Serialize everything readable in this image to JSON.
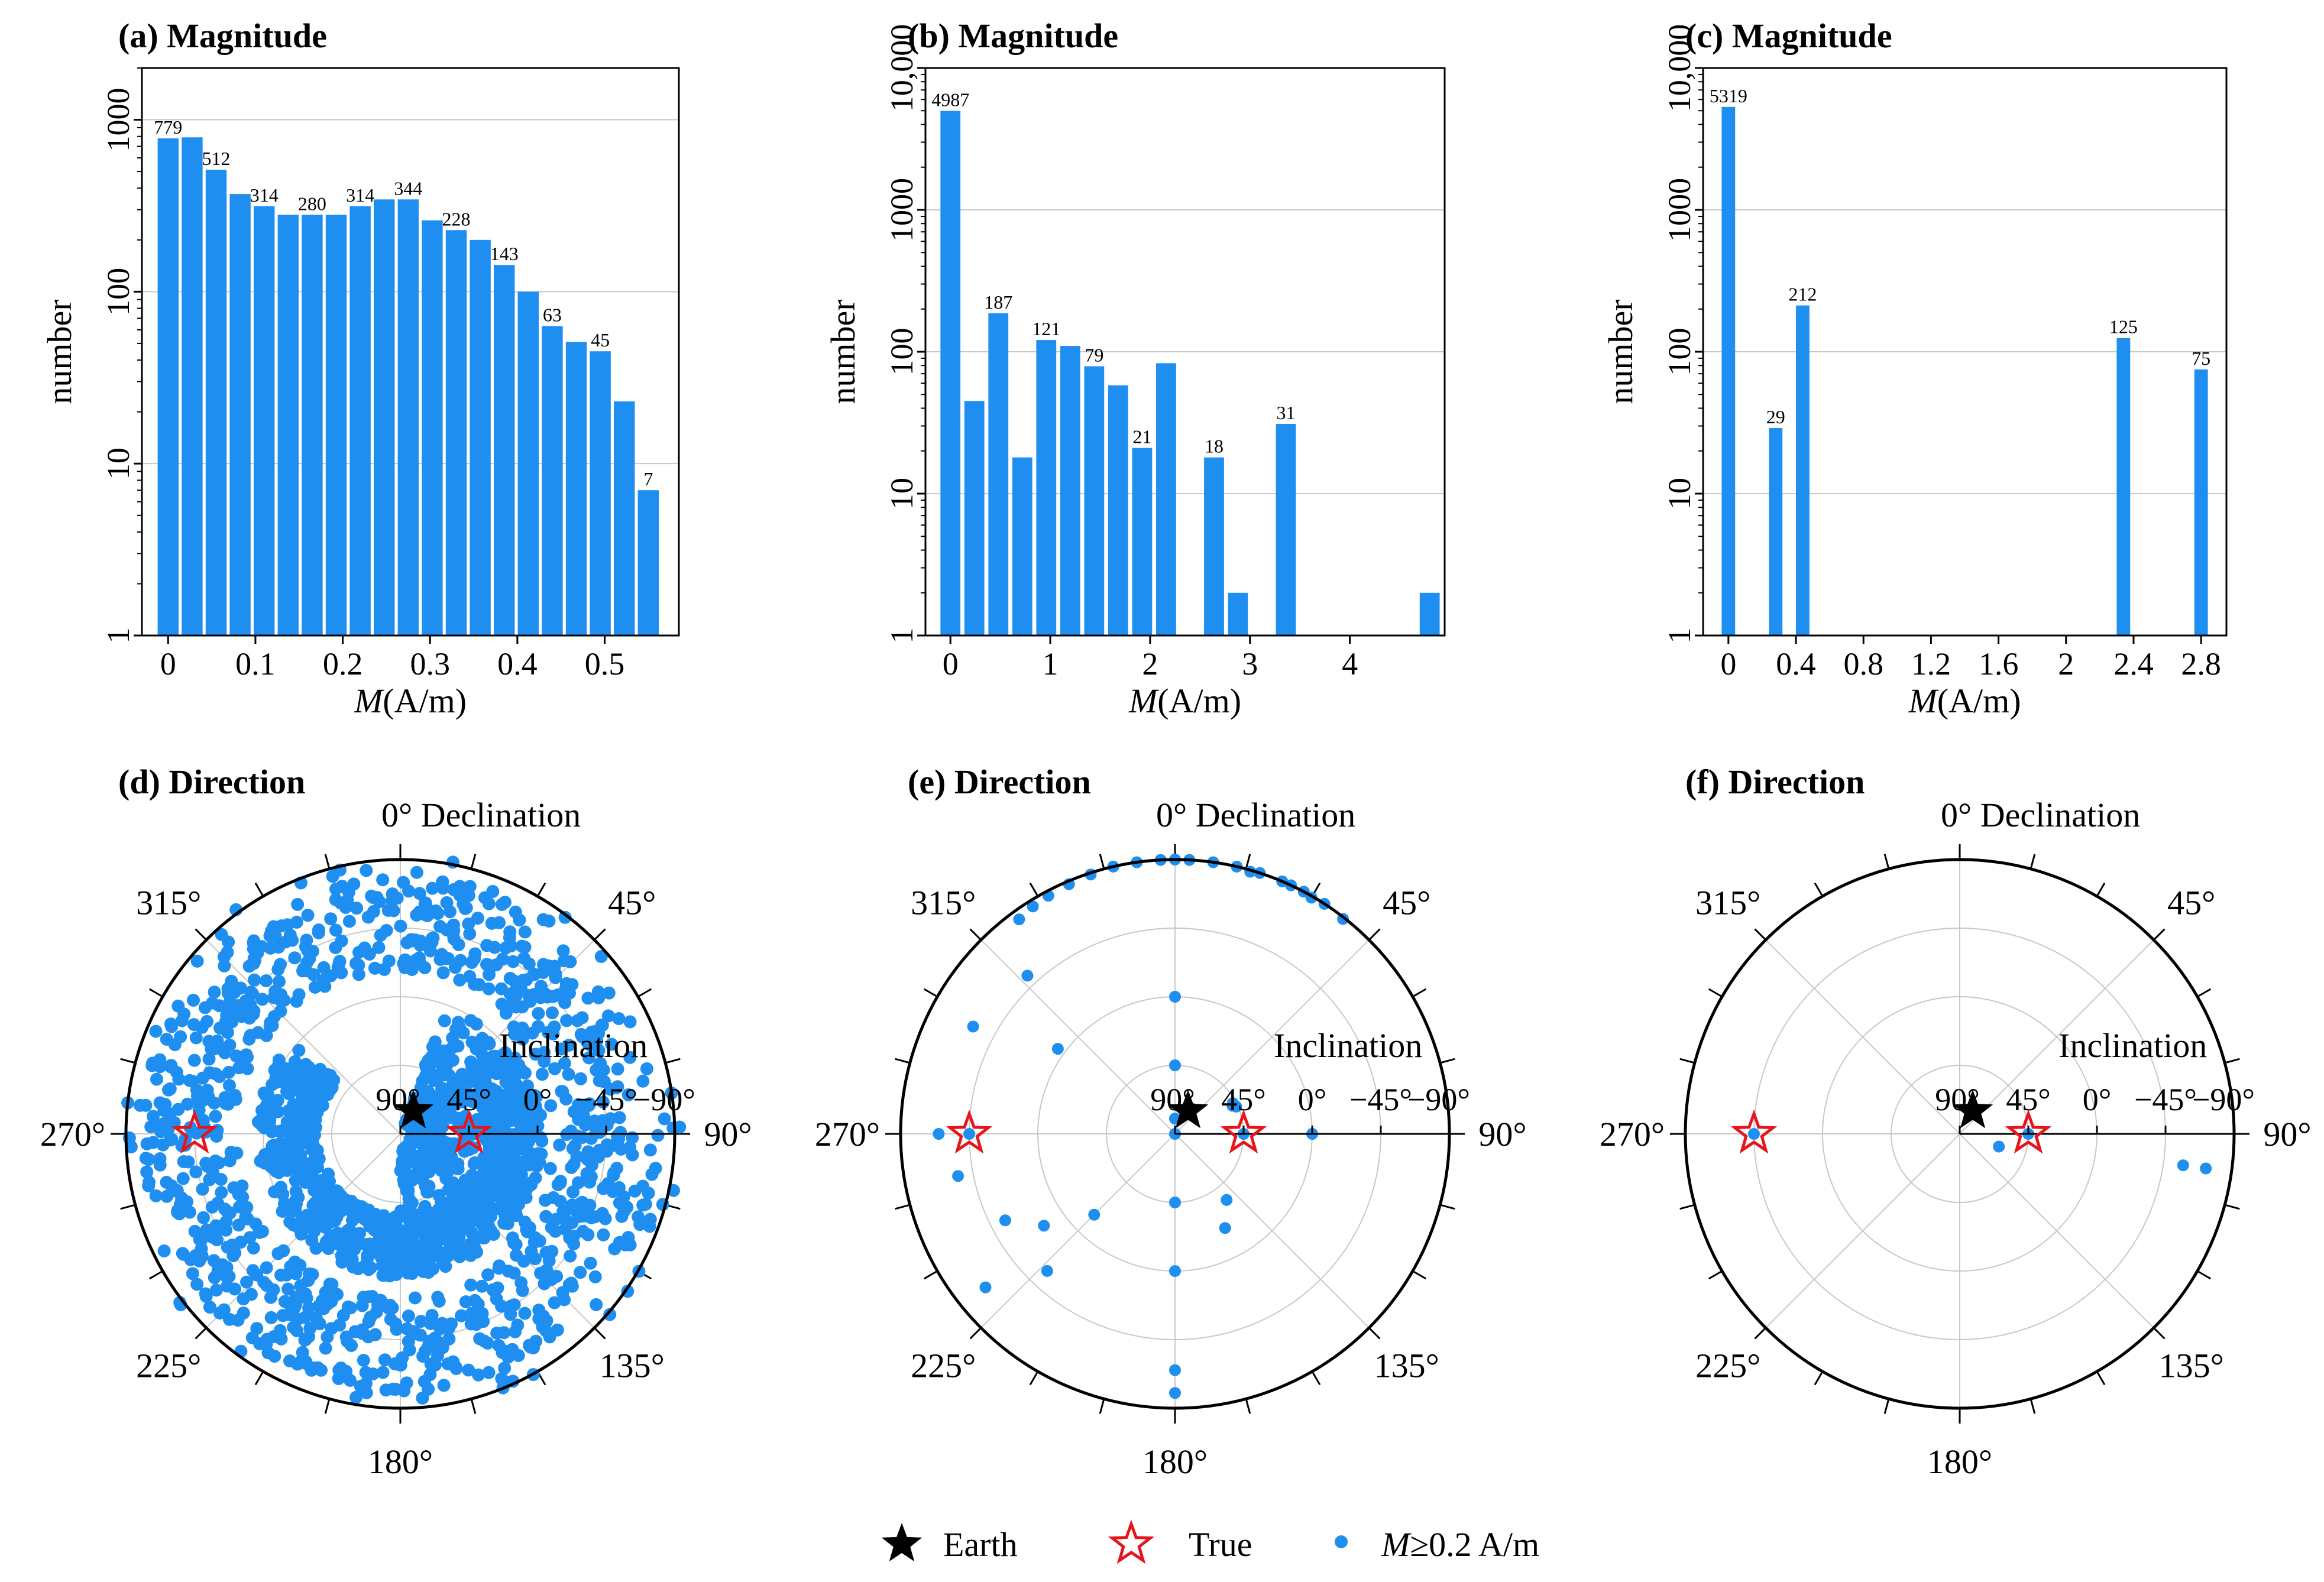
{
  "colors": {
    "bar": "#1e8ff0",
    "point": "#1e8ff0",
    "earth": "#000000",
    "true_star": "#e8141b",
    "grid": "#c8c8c8"
  },
  "chart_data": [
    {
      "id": "a",
      "type": "bar",
      "title_tag": "(a)",
      "title": "Magnitude",
      "ylabel": "number",
      "xlabel": "M(A/m)",
      "xlabel_italic": "M",
      "xlabel_rest": "(A/m)",
      "yscale": "log",
      "ylim": [
        1,
        2000
      ],
      "xlim": [
        -0.03,
        0.585
      ],
      "ytick_values": [
        1,
        10,
        100,
        1000
      ],
      "ytick_labels": [
        "1",
        "10",
        "100",
        "1000"
      ],
      "xtick_values": [
        0,
        0.1,
        0.2,
        0.3,
        0.4,
        0.5
      ],
      "xtick_labels": [
        "0",
        "0.1",
        "0.2",
        "0.3",
        "0.4",
        "0.5"
      ],
      "bar_width": 0.024,
      "x": [
        0,
        0.0275,
        0.055,
        0.0825,
        0.11,
        0.1375,
        0.165,
        0.1925,
        0.22,
        0.2475,
        0.275,
        0.3025,
        0.33,
        0.3575,
        0.385,
        0.4125,
        0.44,
        0.4675,
        0.495,
        0.5225,
        0.55
      ],
      "values": [
        779,
        790,
        512,
        370,
        314,
        280,
        280,
        280,
        314,
        344,
        344,
        260,
        228,
        200,
        143,
        100,
        63,
        51,
        45,
        23,
        7
      ],
      "labels": [
        "779",
        "",
        "512",
        "",
        "314",
        "",
        "280",
        "",
        "314",
        "",
        "344",
        "",
        "228",
        "",
        "143",
        "",
        "63",
        "",
        "45",
        "",
        "7"
      ]
    },
    {
      "id": "b",
      "type": "bar",
      "title_tag": "(b)",
      "title": "Magnitude",
      "ylabel": "number",
      "xlabel": "M(A/m)",
      "xlabel_italic": "M",
      "xlabel_rest": "(A/m)",
      "yscale": "log",
      "ylim": [
        1,
        10000
      ],
      "xlim": [
        -0.25,
        4.95
      ],
      "ytick_values": [
        1,
        10,
        100,
        1000,
        10000
      ],
      "ytick_labels": [
        "1",
        "10",
        "100",
        "1000",
        "10,000"
      ],
      "xtick_values": [
        0,
        1,
        2,
        3,
        4
      ],
      "xtick_labels": [
        "0",
        "1",
        "2",
        "3",
        "4"
      ],
      "bar_width": 0.2,
      "x": [
        0,
        0.24,
        0.48,
        0.72,
        0.96,
        1.2,
        1.44,
        1.68,
        1.92,
        2.16,
        2.64,
        2.88,
        3.36,
        4.8
      ],
      "values": [
        4987,
        45,
        187,
        18,
        121,
        110,
        79,
        58,
        21,
        83,
        18,
        2,
        31,
        2
      ],
      "labels": [
        "4987",
        "",
        "187",
        "",
        "121",
        "",
        "79",
        "",
        "21",
        "",
        "18",
        "",
        "31",
        ""
      ]
    },
    {
      "id": "c",
      "type": "bar",
      "title_tag": "(c)",
      "title": "Magnitude",
      "ylabel": "number",
      "xlabel": "M(A/m)",
      "xlabel_italic": "M",
      "xlabel_rest": "(A/m)",
      "yscale": "log",
      "ylim": [
        1,
        10000
      ],
      "xlim": [
        -0.15,
        2.95
      ],
      "ytick_values": [
        1,
        10,
        100,
        1000,
        10000
      ],
      "ytick_labels": [
        "1",
        "10",
        "100",
        "1000",
        "10,000"
      ],
      "xtick_values": [
        0,
        0.4,
        0.8,
        1.2,
        1.6,
        2,
        2.4,
        2.8
      ],
      "xtick_labels": [
        "0",
        "0.4",
        "0.8",
        "1.2",
        "1.6",
        "2",
        "2.4",
        "2.8"
      ],
      "bar_width": 0.08,
      "x": [
        0,
        0.28,
        0.44,
        2.34,
        2.8
      ],
      "values": [
        5319,
        29,
        212,
        125,
        75
      ],
      "labels": [
        "5319",
        "29",
        "212",
        "125",
        "75"
      ]
    },
    {
      "id": "d",
      "type": "scatter",
      "subtype": "polar",
      "title_tag": "(d)",
      "title": "Direction",
      "angular_label": "0° Declination",
      "radial_label": "Inclination",
      "angle_labels": [
        "45°",
        "90°",
        "135°",
        "180°",
        "225°",
        "270°",
        "315°"
      ],
      "radial_tick_labels": [
        "90°",
        "45°",
        "0°",
        "−45°",
        "−90°"
      ],
      "radial_tick_values": [
        90,
        45,
        0,
        -45,
        -90
      ],
      "earth": {
        "declination": 0,
        "inclination": 75,
        "label": "Earth"
      },
      "true": {
        "declination": 90,
        "inclination": 45,
        "label": "True"
      },
      "true_extra": {
        "declination": 270,
        "inclination": -45
      },
      "points_generated": "dense cloud of approx. 2000 directions",
      "points": []
    },
    {
      "id": "e",
      "type": "scatter",
      "subtype": "polar",
      "title_tag": "(e)",
      "title": "Direction",
      "angular_label": "0° Declination",
      "radial_label": "Inclination",
      "angle_labels": [
        "45°",
        "90°",
        "135°",
        "180°",
        "225°",
        "270°",
        "315°"
      ],
      "radial_tick_labels": [
        "90°",
        "45°",
        "0°",
        "−45°",
        "−90°"
      ],
      "radial_tick_values": [
        90,
        45,
        0,
        -45,
        -90
      ],
      "earth": {
        "declination": 0,
        "inclination": 75,
        "label": "Earth"
      },
      "true": {
        "declination": 90,
        "inclination": 45,
        "label": "True"
      },
      "true_extra": {
        "declination": 270,
        "inclination": -45
      },
      "points": [
        [
          90,
          45
        ],
        [
          270,
          -45
        ],
        [
          270,
          -65
        ],
        [
          259,
          -55
        ],
        [
          235,
          -15
        ],
        [
          225,
          15
        ],
        [
          231,
          -70
        ],
        [
          35,
          70
        ],
        [
          0,
          0
        ],
        [
          0,
          45
        ],
        [
          0,
          80
        ],
        [
          90,
          0
        ],
        [
          180,
          45
        ],
        [
          180,
          0
        ],
        [
          180,
          -65
        ],
        [
          180,
          -80
        ],
        [
          90,
          90
        ],
        [
          142,
          35
        ],
        [
          152,
          20
        ],
        [
          306,
          -5
        ],
        [
          317,
          -52
        ],
        [
          0,
          -90
        ],
        [
          347,
          -90
        ],
        [
          352,
          -90
        ],
        [
          357,
          -90
        ],
        [
          3,
          -90
        ],
        [
          8,
          -90
        ],
        [
          13,
          -90
        ],
        [
          18,
          -90
        ],
        [
          23,
          -90
        ],
        [
          28,
          -90
        ],
        [
          33,
          -90
        ],
        [
          38,
          -89
        ],
        [
          328,
          -86
        ],
        [
          332,
          -87
        ],
        [
          337,
          -88
        ],
        [
          342,
          -89
        ],
        [
          324,
          -84
        ],
        [
          16,
          -89
        ],
        [
          25,
          -90
        ],
        [
          30,
          -89
        ],
        [
          64,
          48
        ],
        [
          66,
          46
        ],
        [
          62,
          47
        ],
        [
          243,
          -35
        ],
        [
          223,
          -33
        ],
        [
          298,
          -60
        ]
      ]
    },
    {
      "id": "f",
      "type": "scatter",
      "subtype": "polar",
      "title_tag": "(f)",
      "title": "Direction",
      "angular_label": "0° Declination",
      "radial_label": "Inclination",
      "angle_labels": [
        "45°",
        "90°",
        "135°",
        "180°",
        "225°",
        "270°",
        "315°"
      ],
      "radial_tick_labels": [
        "90°",
        "45°",
        "0°",
        "−45°",
        "−90°"
      ],
      "radial_tick_values": [
        90,
        45,
        0,
        -45,
        -90
      ],
      "earth": {
        "declination": 0,
        "inclination": 75,
        "label": "Earth"
      },
      "true": {
        "declination": 90,
        "inclination": 45,
        "label": "True"
      },
      "true_extra": {
        "declination": 270,
        "inclination": -45
      },
      "points": [
        [
          270,
          -45
        ],
        [
          90,
          45
        ],
        [
          108,
          63
        ],
        [
          98,
          -58
        ],
        [
          98,
          -73
        ]
      ]
    }
  ],
  "legend": {
    "earth": "Earth",
    "true": "True",
    "points": "≥0.2 A/m",
    "points_italic": "M"
  }
}
